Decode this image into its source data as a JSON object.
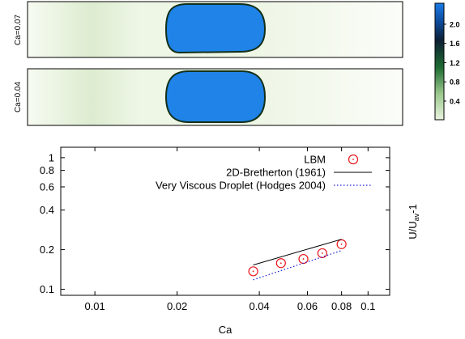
{
  "figure": {
    "snapshots": [
      {
        "label": "Ca=0.07"
      },
      {
        "label": "Ca=0.04"
      }
    ],
    "colorbar": {
      "ticks": [
        "2.0",
        "1.6",
        "1.2",
        "0.8",
        "0.4"
      ],
      "colors": {
        "top": "#1a7be8",
        "dark": "#0d1f33",
        "mid": "#1e6b32",
        "light": "#e9f3df"
      }
    }
  },
  "chart_data": {
    "type": "scatter",
    "xlabel": "Ca",
    "ylabel_base": "U/U",
    "ylabel_sub": "av",
    "ylabel_tail": "-1",
    "xscale": "log",
    "yscale": "log",
    "xlim": [
      0.0075,
      0.12
    ],
    "ylim": [
      0.09,
      1.2
    ],
    "xticks": [
      {
        "v": 0.01,
        "label": "0.01"
      },
      {
        "v": 0.02,
        "label": "0.02"
      },
      {
        "v": 0.04,
        "label": "0.04"
      },
      {
        "v": 0.06,
        "label": "0.06"
      },
      {
        "v": 0.08,
        "label": "0.08"
      },
      {
        "v": 0.1,
        "label": "0.1"
      }
    ],
    "yticks": [
      {
        "v": 0.1,
        "label": "0.1"
      },
      {
        "v": 0.2,
        "label": "0.2"
      },
      {
        "v": 0.4,
        "label": "0.4"
      },
      {
        "v": 0.6,
        "label": "0.6"
      },
      {
        "v": 0.8,
        "label": "0.8"
      },
      {
        "v": 1.0,
        "label": "1"
      }
    ],
    "legend_position": "top-right",
    "series": [
      {
        "name": "LBM",
        "style": "markers",
        "color": "#e8161c",
        "x": [
          0.038,
          0.048,
          0.058,
          0.068,
          0.08
        ],
        "y": [
          0.137,
          0.158,
          0.17,
          0.188,
          0.22
        ]
      },
      {
        "name": "2D-Bretherton (1961)",
        "style": "line",
        "color": "#000000",
        "x": [
          0.038,
          0.08
        ],
        "y": [
          0.153,
          0.24
        ]
      },
      {
        "name": "Very Viscous Droplet (Hodges 2004)",
        "style": "dotted",
        "color": "#1a1ad6",
        "x": [
          0.038,
          0.08
        ],
        "y": [
          0.118,
          0.197
        ]
      }
    ]
  }
}
